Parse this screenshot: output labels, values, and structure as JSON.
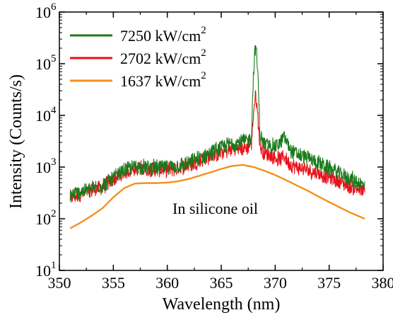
{
  "chart_data": {
    "type": "line",
    "xlabel": "Wavelength (nm)",
    "ylabel": "Intensity (Counts/s)",
    "xlim": [
      350,
      380
    ],
    "ylim": [
      10,
      1000000
    ],
    "yscale": "log",
    "xticks": [
      350,
      355,
      360,
      365,
      370,
      375,
      380
    ],
    "yticks": [
      {
        "value": 10,
        "base": "10",
        "exp": "1"
      },
      {
        "value": 100,
        "base": "10",
        "exp": "2"
      },
      {
        "value": 1000,
        "base": "10",
        "exp": "3"
      },
      {
        "value": 10000,
        "base": "10",
        "exp": "4"
      },
      {
        "value": 100000,
        "base": "10",
        "exp": "5"
      },
      {
        "value": 1000000,
        "base": "10",
        "exp": "6"
      }
    ],
    "legend_position": "top-left",
    "annotation": "In silicone oil",
    "series": [
      {
        "name": "7250 kW/cm",
        "name_sup": "2",
        "color": "#1a7a1a",
        "noisy": true,
        "x": [
          351,
          352,
          353,
          354,
          355,
          356,
          357,
          358,
          359,
          360,
          361,
          362,
          363,
          364,
          365,
          366,
          367,
          367.5,
          367.8,
          368.0,
          368.2,
          368.4,
          368.6,
          369,
          369.5,
          370,
          370.5,
          370.8,
          371.1,
          371.5,
          372,
          373,
          374,
          375,
          376,
          377,
          378.3
        ],
        "y": [
          290,
          330,
          380,
          450,
          600,
          850,
          1020,
          1000,
          980,
          990,
          1060,
          1200,
          1500,
          1900,
          2400,
          2900,
          3100,
          3300,
          4000,
          80000,
          250000,
          60000,
          4000,
          2800,
          2600,
          2500,
          3000,
          3900,
          3000,
          2000,
          1800,
          1500,
          1200,
          950,
          750,
          600,
          430
        ]
      },
      {
        "name": "2702 kW/cm",
        "name_sup": "2",
        "color": "#e8101a",
        "noisy": true,
        "x": [
          351,
          352,
          353,
          354,
          355,
          356,
          357,
          358,
          359,
          360,
          361,
          362,
          363,
          364,
          365,
          366,
          367,
          367.5,
          367.8,
          368.0,
          368.2,
          368.4,
          368.6,
          369,
          369.5,
          370,
          370.5,
          370.8,
          371.1,
          371.5,
          372,
          373,
          374,
          375,
          376,
          377,
          378.3
        ],
        "y": [
          260,
          300,
          350,
          420,
          560,
          800,
          950,
          930,
          900,
          900,
          960,
          1100,
          1300,
          1600,
          1900,
          2200,
          2300,
          2500,
          3000,
          12000,
          26000,
          9000,
          2500,
          1900,
          1700,
          1500,
          1400,
          1700,
          1300,
          1100,
          1000,
          880,
          760,
          640,
          520,
          420,
          330
        ]
      },
      {
        "name": "1637 kW/cm",
        "name_sup": "2",
        "color": "#f5901e",
        "noisy": false,
        "x": [
          351,
          352,
          353,
          354,
          355,
          356,
          357,
          358,
          359,
          360,
          361,
          362,
          363,
          364,
          365,
          366,
          367,
          368,
          369,
          370,
          371,
          372,
          373,
          374,
          375,
          376,
          377,
          378.3
        ],
        "y": [
          65,
          85,
          115,
          160,
          260,
          390,
          480,
          490,
          490,
          500,
          530,
          590,
          680,
          790,
          920,
          1050,
          1100,
          1000,
          850,
          700,
          560,
          440,
          350,
          270,
          210,
          165,
          130,
          100
        ]
      }
    ]
  }
}
